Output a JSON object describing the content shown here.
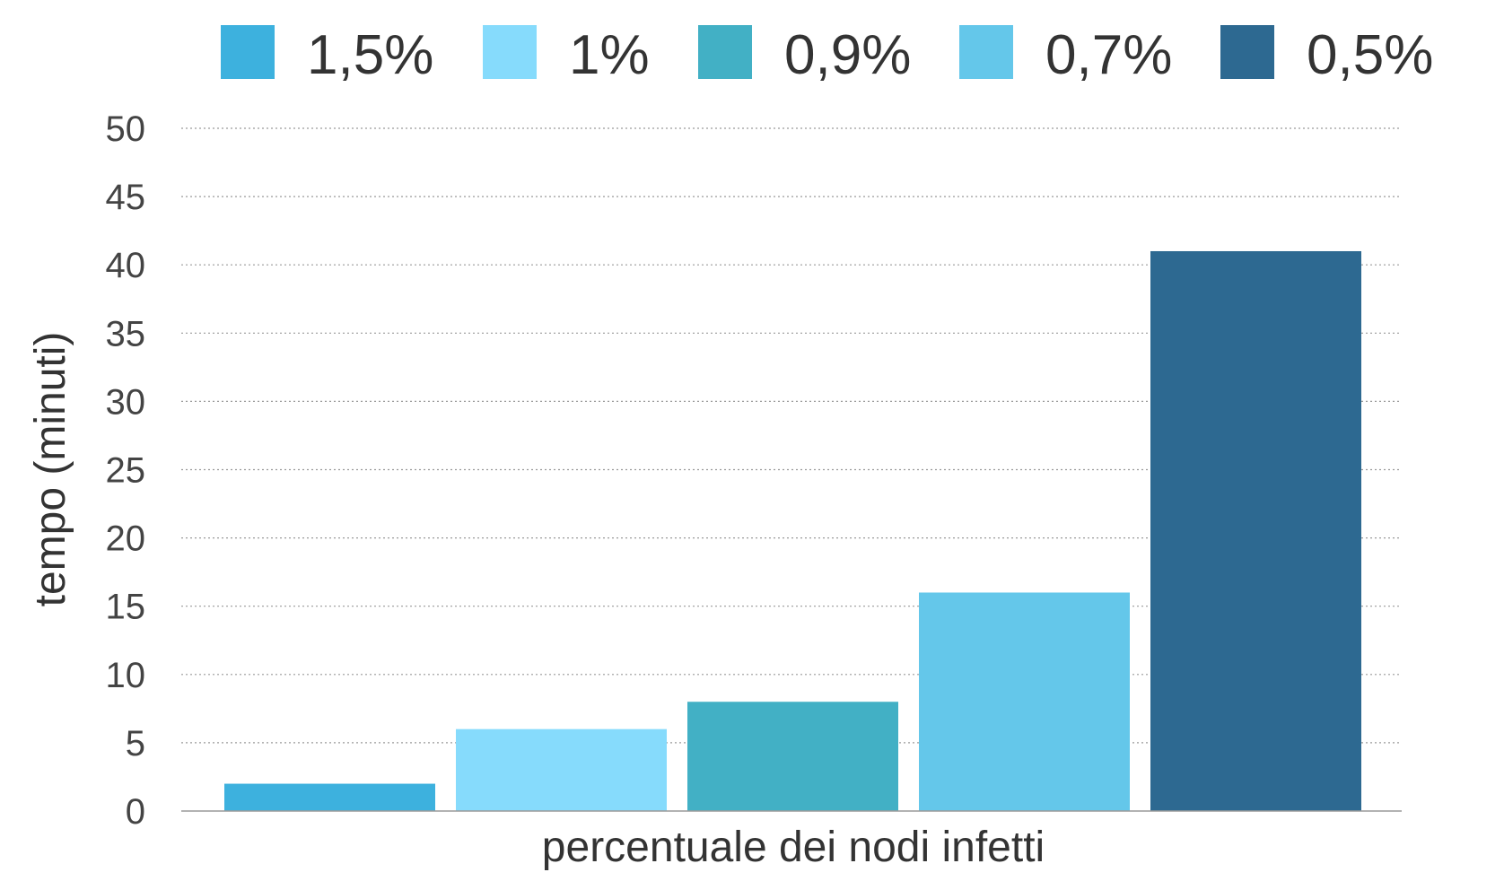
{
  "chart_data": {
    "type": "bar",
    "categories": [
      "1,5%",
      "1%",
      "0,9%",
      "0,7%",
      "0,5%"
    ],
    "values": [
      2,
      6,
      8,
      16,
      41
    ],
    "colors": [
      "#3DB1DE",
      "#86DBFC",
      "#42B0C5",
      "#64C7EA",
      "#2D6991"
    ],
    "legend": {
      "position": "top",
      "entries": [
        "1,5%",
        "1%",
        "0,9%",
        "0,7%",
        "0,5%"
      ]
    },
    "xlabel": "percentuale dei nodi infetti",
    "ylabel": "tempo (minuti)",
    "ylim": [
      0,
      50
    ],
    "yticks": [
      0,
      5,
      10,
      15,
      20,
      25,
      30,
      35,
      40,
      45,
      50
    ],
    "ytick_labels": [
      "0",
      "5",
      "10",
      "15",
      "20",
      "25",
      "30",
      "35",
      "40",
      "45",
      "50"
    ],
    "grid": true
  }
}
